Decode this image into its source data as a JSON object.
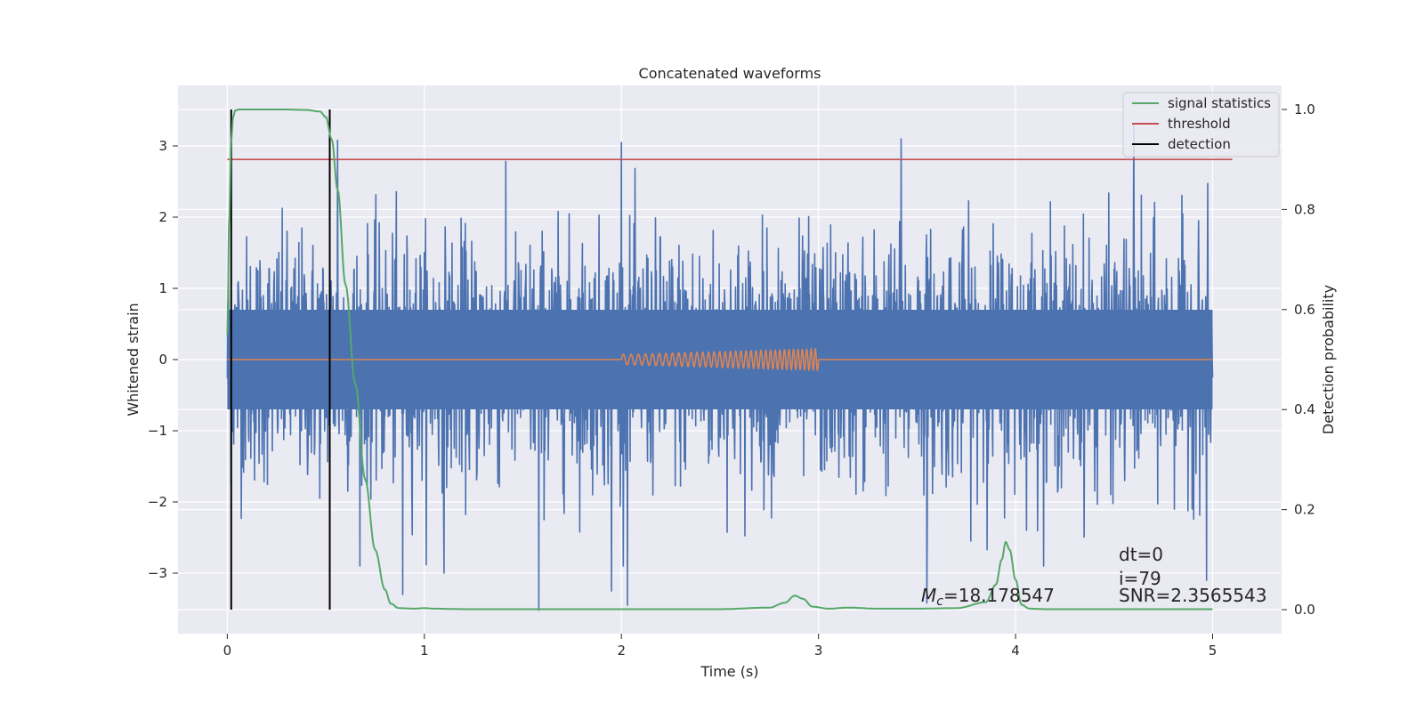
{
  "chart_data": {
    "type": "line",
    "title": "Concatenated waveforms",
    "xlabel": "Time (s)",
    "ylabel": "Whitened strain",
    "y2label": "Detection probability",
    "xlim": [
      -0.25,
      5.35
    ],
    "ylim": [
      -3.85,
      3.85
    ],
    "y2lim": [
      -0.048,
      1.048
    ],
    "xticks": [
      0,
      1,
      2,
      3,
      4,
      5
    ],
    "yticks": [
      -3,
      -2,
      -1,
      0,
      1,
      2,
      3
    ],
    "y2ticks": [
      0.0,
      0.2,
      0.4,
      0.6,
      0.8,
      1.0
    ],
    "xtick_labels": [
      "0",
      "1",
      "2",
      "3",
      "4",
      "5"
    ],
    "ytick_labels": [
      "−3",
      "−2",
      "−1",
      "0",
      "1",
      "2",
      "3"
    ],
    "y2tick_labels": [
      "0.0",
      "0.2",
      "0.4",
      "0.6",
      "0.8",
      "1.0"
    ],
    "grid": true,
    "legend_position": "top-right",
    "colors": {
      "background": "#eaeaf2",
      "grid": "#ffffff",
      "strain": "#4c72b0",
      "injection": "#dd8452",
      "signal_statistics": "#55a868",
      "threshold": "#c44e52",
      "detection": "#000000"
    },
    "series": [
      {
        "name": "Whitened strain (noise)",
        "axis": "left",
        "x_range": [
          0,
          5
        ],
        "core_band": [
          -0.7,
          0.7
        ],
        "typical_peaks": [
          -2.5,
          2.6
        ],
        "notable_points": [
          {
            "x": 0.56,
            "y": 3.08
          },
          {
            "x": 2.0,
            "y": 3.05
          },
          {
            "x": 3.42,
            "y": 3.1
          },
          {
            "x": 4.6,
            "y": 3.3
          },
          {
            "x": 1.58,
            "y": -3.52
          },
          {
            "x": 2.03,
            "y": -3.45
          },
          {
            "x": 3.55,
            "y": -3.42
          },
          {
            "x": 0.89,
            "y": -3.3
          },
          {
            "x": 1.1,
            "y": -3.0
          },
          {
            "x": 1.95,
            "y": -3.25
          },
          {
            "x": 4.97,
            "y": -3.1
          }
        ]
      },
      {
        "name": "injected chirp",
        "axis": "left",
        "x_range": [
          2.0,
          3.0
        ],
        "amplitude_start": 0.07,
        "amplitude_end": 0.15,
        "cycles": 36
      },
      {
        "name": "signal statistics",
        "axis": "right",
        "x": [
          0,
          0.01,
          0.02,
          0.03,
          0.04,
          0.06,
          0.1,
          0.2,
          0.3,
          0.4,
          0.47,
          0.5,
          0.53,
          0.56,
          0.6,
          0.65,
          0.7,
          0.75,
          0.8,
          0.83,
          0.87,
          0.95,
          1.0,
          1.05,
          1.2,
          1.5,
          2.0,
          2.5,
          2.75,
          2.83,
          2.88,
          2.92,
          2.97,
          3.05,
          3.15,
          3.3,
          3.5,
          3.7,
          3.85,
          3.9,
          3.93,
          3.95,
          3.97,
          4.0,
          4.03,
          4.07,
          4.15,
          4.5,
          5.0
        ],
        "y": [
          0.55,
          0.78,
          0.94,
          0.985,
          0.998,
          1.0,
          1.0,
          1.0,
          1.0,
          0.999,
          0.996,
          0.985,
          0.94,
          0.84,
          0.65,
          0.45,
          0.26,
          0.12,
          0.04,
          0.012,
          0.003,
          0.002,
          0.003,
          0.002,
          0.001,
          0.001,
          0.001,
          0.001,
          0.004,
          0.014,
          0.028,
          0.022,
          0.006,
          0.002,
          0.004,
          0.002,
          0.002,
          0.003,
          0.015,
          0.05,
          0.1,
          0.135,
          0.12,
          0.06,
          0.01,
          0.002,
          0.001,
          0.001,
          0.001
        ]
      },
      {
        "name": "threshold",
        "axis": "right",
        "x": [
          0,
          5.1
        ],
        "y": [
          0.9,
          0.9
        ]
      },
      {
        "name": "detection",
        "axis": "right",
        "x_positions": [
          0.02,
          0.52
        ],
        "y": [
          0,
          1
        ]
      }
    ],
    "legend": [
      {
        "label": "signal statistics",
        "color": "#55a868"
      },
      {
        "label": "threshold",
        "color": "#c44e52"
      },
      {
        "label": "detection",
        "color": "#000000"
      }
    ],
    "annotations": {
      "mc": {
        "prefix": "M",
        "sub": "c",
        "value": "=18.178547"
      },
      "dt": "dt=0",
      "i": "i=79",
      "snr": "SNR=2.3565543"
    }
  }
}
